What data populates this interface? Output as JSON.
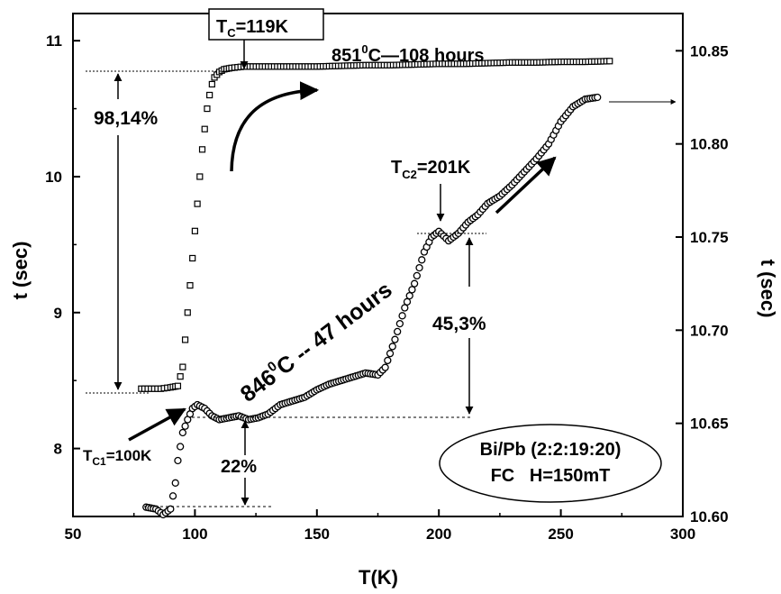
{
  "chart_data": {
    "type": "scatter",
    "xlabel": "T(K)",
    "ylabel": "t (sec)",
    "y2label": "t (sec)",
    "xlim": [
      50,
      300
    ],
    "ylim": [
      7.5,
      11.2
    ],
    "y2lim": [
      10.6,
      10.87
    ],
    "x_ticks": [
      "50",
      "100",
      "150",
      "200",
      "250",
      "300"
    ],
    "y_ticks": [
      "8",
      "9",
      "10",
      "11"
    ],
    "y2_ticks": [
      "10.60",
      "10.65",
      "10.70",
      "10.75",
      "10.80",
      "10.85"
    ],
    "grid": false,
    "series": [
      {
        "axis": "left",
        "marker": "open-square",
        "points": [
          [
            78,
            8.44
          ],
          [
            82,
            8.44
          ],
          [
            86,
            8.44
          ],
          [
            90,
            8.45
          ],
          [
            93,
            8.46
          ],
          [
            95,
            8.6
          ],
          [
            96,
            8.8
          ],
          [
            97,
            9.0
          ],
          [
            98,
            9.2
          ],
          [
            99,
            9.4
          ],
          [
            100,
            9.6
          ],
          [
            101,
            9.8
          ],
          [
            102,
            10.0
          ],
          [
            103,
            10.2
          ],
          [
            104,
            10.35
          ],
          [
            105,
            10.5
          ],
          [
            106,
            10.6
          ],
          [
            107,
            10.68
          ],
          [
            108,
            10.73
          ],
          [
            110,
            10.77
          ],
          [
            112,
            10.79
          ],
          [
            115,
            10.8
          ],
          [
            120,
            10.81
          ],
          [
            130,
            10.81
          ],
          [
            140,
            10.81
          ],
          [
            150,
            10.81
          ],
          [
            160,
            10.815
          ],
          [
            170,
            10.82
          ],
          [
            180,
            10.82
          ],
          [
            190,
            10.825
          ],
          [
            200,
            10.83
          ],
          [
            210,
            10.83
          ],
          [
            220,
            10.835
          ],
          [
            230,
            10.84
          ],
          [
            240,
            10.84
          ],
          [
            250,
            10.845
          ],
          [
            260,
            10.845
          ],
          [
            270,
            10.85
          ]
        ]
      },
      {
        "axis": "right",
        "marker": "open-circle",
        "points": [
          [
            80,
            10.605
          ],
          [
            84,
            10.604
          ],
          [
            87,
            10.601
          ],
          [
            90,
            10.604
          ],
          [
            92,
            10.618
          ],
          [
            93,
            10.63
          ],
          [
            95,
            10.645
          ],
          [
            97,
            10.652
          ],
          [
            99,
            10.658
          ],
          [
            101,
            10.66
          ],
          [
            104,
            10.658
          ],
          [
            107,
            10.654
          ],
          [
            110,
            10.652
          ],
          [
            114,
            10.653
          ],
          [
            118,
            10.654
          ],
          [
            122,
            10.652
          ],
          [
            126,
            10.653
          ],
          [
            130,
            10.655
          ],
          [
            135,
            10.66
          ],
          [
            140,
            10.662
          ],
          [
            145,
            10.664
          ],
          [
            150,
            10.668
          ],
          [
            155,
            10.671
          ],
          [
            160,
            10.673
          ],
          [
            165,
            10.675
          ],
          [
            170,
            10.677
          ],
          [
            175,
            10.676
          ],
          [
            178,
            10.68
          ],
          [
            182,
            10.695
          ],
          [
            186,
            10.712
          ],
          [
            190,
            10.725
          ],
          [
            194,
            10.742
          ],
          [
            197,
            10.75
          ],
          [
            200,
            10.753
          ],
          [
            204,
            10.748
          ],
          [
            208,
            10.752
          ],
          [
            212,
            10.758
          ],
          [
            216,
            10.762
          ],
          [
            220,
            10.768
          ],
          [
            225,
            10.772
          ],
          [
            230,
            10.778
          ],
          [
            235,
            10.785
          ],
          [
            240,
            10.792
          ],
          [
            245,
            10.8
          ],
          [
            250,
            10.812
          ],
          [
            255,
            10.82
          ],
          [
            260,
            10.824
          ],
          [
            265,
            10.825
          ]
        ]
      }
    ],
    "annotations": {
      "tc_box": "T",
      "tc_box_sub": "C",
      "tc_box_val": "=119K",
      "top_cond_a": "851",
      "top_cond_sup": "0",
      "top_cond_b": "C—108 hours",
      "pct_98": "98,14%",
      "tc2_a": "T",
      "tc2_sub": "C2",
      "tc2_b": "=201K",
      "diag_a": "846",
      "diag_sup": "0",
      "diag_b": "C -- 47 hours",
      "pct_45": "45,3%",
      "tc1_a": "T",
      "tc1_sub": "C1",
      "tc1_b": "=100K",
      "pct_22": "22%",
      "legend_line1": "Bi/Pb (2:2:19:20)",
      "legend_line2": "FC   H=150mT"
    }
  }
}
